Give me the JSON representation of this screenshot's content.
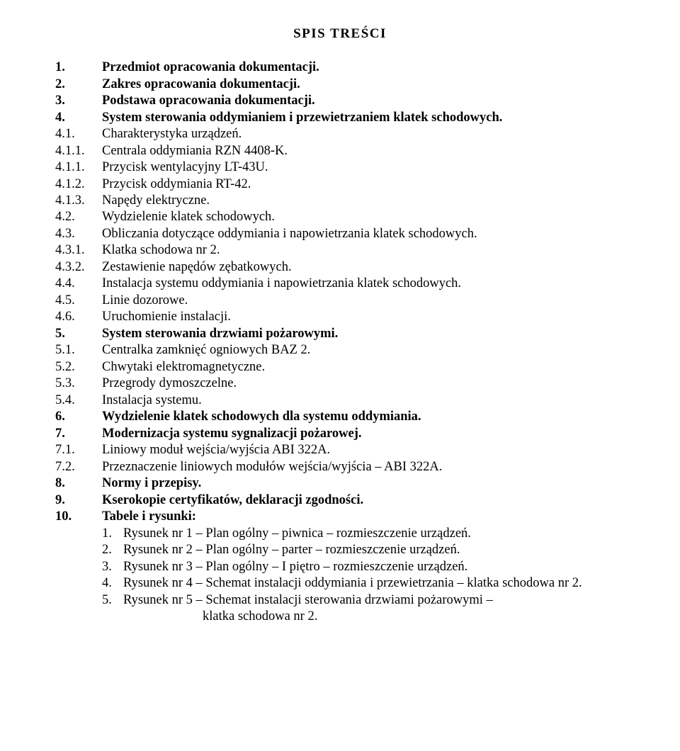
{
  "title": "SPIS  TREŚCI",
  "items": [
    {
      "num": "1.",
      "label": "Przedmiot opracowania dokumentacji.",
      "bold": true
    },
    {
      "num": "2.",
      "label": "Zakres opracowania dokumentacji.",
      "bold": true
    },
    {
      "num": "3.",
      "label": "Podstawa opracowania dokumentacji.",
      "bold": true
    },
    {
      "num": "4.",
      "label": "System sterowania oddymianiem i przewietrzaniem klatek schodowych.",
      "bold": true
    },
    {
      "num": "4.1.",
      "label": "Charakterystyka urządzeń.",
      "bold": false
    },
    {
      "num": "4.1.1.",
      "label": "Centrala oddymiania RZN 4408-K.",
      "bold": false
    },
    {
      "num": "4.1.1.",
      "label": " Przycisk wentylacyjny LT-43U.",
      "bold": false
    },
    {
      "num": "4.1.2.",
      "label": " Przycisk oddymiania RT-42.",
      "bold": false
    },
    {
      "num": "4.1.3.",
      "label": "Napędy elektryczne.",
      "bold": false
    },
    {
      "num": "4.2.",
      "label": "Wydzielenie klatek schodowych.",
      "bold": false
    },
    {
      "num": "4.3.",
      "label": "Obliczania dotyczące oddymiania i napowietrzania klatek schodowych.",
      "bold": false
    },
    {
      "num": "4.3.1.",
      "label": "Klatka schodowa nr 2.",
      "bold": false
    },
    {
      "num": "4.3.2.",
      "label": "Zestawienie napędów zębatkowych.",
      "bold": false
    },
    {
      "num": "4.4.",
      "label": "Instalacja systemu oddymiania i napowietrzania klatek schodowych.",
      "bold": false
    },
    {
      "num": "4.5.",
      "label": "Linie dozorowe.",
      "bold": false
    },
    {
      "num": "4.6.",
      "label": "Uruchomienie instalacji.",
      "bold": false
    },
    {
      "num": "5.",
      "label": "System sterowania drzwiami pożarowymi.",
      "bold": true
    },
    {
      "num": "5.1.",
      "label": "Centralka zamknięć ogniowych BAZ 2.",
      "bold": false
    },
    {
      "num": "5.2.",
      "label": "Chwytaki elektromagnetyczne.",
      "bold": false
    },
    {
      "num": "5.3.",
      "label": "Przegrody dymoszczelne.",
      "bold": false
    },
    {
      "num": "5.4.",
      "label": "Instalacja systemu.",
      "bold": false
    },
    {
      "num": "6.",
      "label": "Wydzielenie klatek schodowych dla systemu oddymiania.",
      "bold": true
    },
    {
      "num": "7.",
      "label": "Modernizacja systemu sygnalizacji pożarowej.",
      "bold": true
    },
    {
      "num": "7.1.",
      "label": "Liniowy moduł wejścia/wyjścia ABI 322A.",
      "bold": false
    },
    {
      "num": "7.2.",
      "label": "Przeznaczenie liniowych modułów wejścia/wyjścia – ABI 322A.",
      "bold": false
    },
    {
      "num": "8.",
      "label": "Normy i przepisy.",
      "bold": true
    },
    {
      "num": "9.",
      "label": "Kserokopie certyfikatów, deklaracji zgodności.",
      "bold": true
    },
    {
      "num": "10.",
      "label": "Tabele i rysunki:",
      "bold": true
    }
  ],
  "sub_items": [
    {
      "num": "1.",
      "label": "Rysunek nr  1 – Plan ogólny – piwnica – rozmieszczenie urządzeń."
    },
    {
      "num": "2.",
      "label": "Rysunek nr  2 – Plan ogólny – parter – rozmieszczenie urządzeń."
    },
    {
      "num": "3.",
      "label": "Rysunek nr  3 – Plan ogólny – I piętro – rozmieszczenie urządzeń."
    },
    {
      "num": "4.",
      "label": "Rysunek nr  4 – Schemat instalacji oddymiania i przewietrzania – klatka schodowa nr 2."
    },
    {
      "num": "5.",
      "label": "Rysunek nr 5 – Schemat instalacji sterowania drzwiami pożarowymi –"
    }
  ],
  "continuation": "klatka schodowa nr 2."
}
